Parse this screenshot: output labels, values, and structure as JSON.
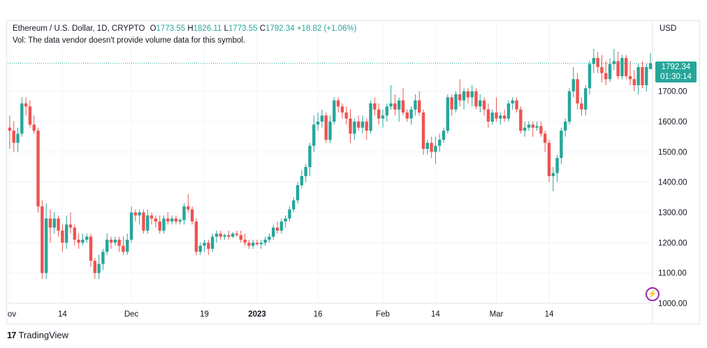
{
  "header": {
    "symbol": "Ethereum / U.S. Dollar, 1D, CRYPTO",
    "o_label": "O",
    "o_value": "1773.55",
    "h_label": "H",
    "h_value": "1826.11",
    "l_label": "L",
    "l_value": "1773.55",
    "c_label": "C",
    "c_value": "1792.34",
    "change": "+18.82 (+1.06%)",
    "volume_message": "Vol: The data vendor doesn't provide volume data for this symbol."
  },
  "price_tag": {
    "price": "1792.34",
    "countdown": "01:30:14"
  },
  "currency": "USD",
  "branding": {
    "logo_mark": "17",
    "logo_text": "TradingView"
  },
  "colors": {
    "up": "#26a69a",
    "down": "#ef5350",
    "grid": "#f0f3fa",
    "last_price_line": "#26a69a"
  },
  "chart_data": {
    "type": "candlestick",
    "title": "Ethereum / U.S. Dollar, 1D, CRYPTO",
    "ylabel": "USD",
    "ylim": [
      1000,
      1900
    ],
    "y_ticks": [
      1000,
      1100,
      1200,
      1300,
      1400,
      1500,
      1600,
      1700
    ],
    "y_tick_labels": [
      "1000.00",
      "1100.00",
      "1200.00",
      "1300.00",
      "1400.00",
      "1500.00",
      "1600.00",
      "1700.00"
    ],
    "x_ticks": [
      {
        "day": 0,
        "label": "ov"
      },
      {
        "day": 13,
        "label": "14"
      },
      {
        "day": 30,
        "label": "Dec"
      },
      {
        "day": 48,
        "label": "19"
      },
      {
        "day": 61,
        "label": "2023"
      },
      {
        "day": 76,
        "label": "16"
      },
      {
        "day": 92,
        "label": "Feb"
      },
      {
        "day": 105,
        "label": "14"
      },
      {
        "day": 120,
        "label": "Mar"
      },
      {
        "day": 133,
        "label": "14"
      }
    ],
    "last_price": 1792.34,
    "candles": [
      [
        1580,
        1620,
        1510,
        1570
      ],
      [
        1570,
        1600,
        1500,
        1530
      ],
      [
        1530,
        1580,
        1500,
        1560
      ],
      [
        1560,
        1680,
        1550,
        1660
      ],
      [
        1660,
        1680,
        1620,
        1650
      ],
      [
        1650,
        1670,
        1580,
        1590
      ],
      [
        1590,
        1620,
        1560,
        1570
      ],
      [
        1570,
        1580,
        1300,
        1320
      ],
      [
        1320,
        1340,
        1080,
        1100
      ],
      [
        1100,
        1330,
        1080,
        1280
      ],
      [
        1280,
        1310,
        1200,
        1250
      ],
      [
        1250,
        1300,
        1230,
        1280
      ],
      [
        1280,
        1290,
        1220,
        1240
      ],
      [
        1240,
        1260,
        1170,
        1200
      ],
      [
        1200,
        1290,
        1180,
        1260
      ],
      [
        1260,
        1300,
        1230,
        1250
      ],
      [
        1250,
        1260,
        1190,
        1210
      ],
      [
        1210,
        1230,
        1180,
        1200
      ],
      [
        1200,
        1230,
        1190,
        1210
      ],
      [
        1210,
        1230,
        1200,
        1220
      ],
      [
        1220,
        1230,
        1120,
        1140
      ],
      [
        1140,
        1150,
        1080,
        1100
      ],
      [
        1100,
        1160,
        1080,
        1130
      ],
      [
        1130,
        1180,
        1110,
        1170
      ],
      [
        1170,
        1230,
        1160,
        1210
      ],
      [
        1210,
        1220,
        1180,
        1200
      ],
      [
        1200,
        1220,
        1190,
        1210
      ],
      [
        1210,
        1220,
        1170,
        1190
      ],
      [
        1190,
        1220,
        1160,
        1170
      ],
      [
        1170,
        1230,
        1160,
        1210
      ],
      [
        1210,
        1320,
        1200,
        1300
      ],
      [
        1300,
        1310,
        1270,
        1290
      ],
      [
        1290,
        1310,
        1260,
        1300
      ],
      [
        1300,
        1310,
        1230,
        1240
      ],
      [
        1240,
        1310,
        1230,
        1290
      ],
      [
        1290,
        1300,
        1260,
        1280
      ],
      [
        1280,
        1290,
        1250,
        1270
      ],
      [
        1270,
        1290,
        1230,
        1240
      ],
      [
        1240,
        1290,
        1230,
        1280
      ],
      [
        1280,
        1300,
        1260,
        1270
      ],
      [
        1270,
        1290,
        1260,
        1280
      ],
      [
        1280,
        1290,
        1260,
        1270
      ],
      [
        1270,
        1280,
        1260,
        1275
      ],
      [
        1275,
        1330,
        1260,
        1320
      ],
      [
        1320,
        1360,
        1300,
        1310
      ],
      [
        1310,
        1320,
        1260,
        1270
      ],
      [
        1270,
        1280,
        1160,
        1170
      ],
      [
        1170,
        1200,
        1160,
        1190
      ],
      [
        1190,
        1210,
        1170,
        1200
      ],
      [
        1200,
        1210,
        1160,
        1180
      ],
      [
        1180,
        1230,
        1170,
        1220
      ],
      [
        1220,
        1240,
        1200,
        1230
      ],
      [
        1230,
        1240,
        1210,
        1220
      ],
      [
        1220,
        1230,
        1210,
        1225
      ],
      [
        1225,
        1240,
        1210,
        1220
      ],
      [
        1220,
        1235,
        1215,
        1230
      ],
      [
        1230,
        1240,
        1220,
        1225
      ],
      [
        1225,
        1240,
        1200,
        1210
      ],
      [
        1210,
        1230,
        1190,
        1200
      ],
      [
        1200,
        1210,
        1180,
        1190
      ],
      [
        1190,
        1210,
        1180,
        1200
      ],
      [
        1200,
        1210,
        1190,
        1195
      ],
      [
        1195,
        1210,
        1180,
        1200
      ],
      [
        1200,
        1220,
        1190,
        1210
      ],
      [
        1210,
        1230,
        1200,
        1220
      ],
      [
        1220,
        1260,
        1210,
        1250
      ],
      [
        1250,
        1270,
        1230,
        1240
      ],
      [
        1240,
        1280,
        1230,
        1270
      ],
      [
        1270,
        1290,
        1250,
        1280
      ],
      [
        1280,
        1320,
        1270,
        1310
      ],
      [
        1310,
        1350,
        1300,
        1340
      ],
      [
        1340,
        1400,
        1330,
        1390
      ],
      [
        1390,
        1440,
        1380,
        1420
      ],
      [
        1420,
        1460,
        1400,
        1450
      ],
      [
        1450,
        1530,
        1420,
        1520
      ],
      [
        1520,
        1620,
        1500,
        1590
      ],
      [
        1590,
        1630,
        1570,
        1600
      ],
      [
        1600,
        1640,
        1580,
        1620
      ],
      [
        1620,
        1630,
        1530,
        1540
      ],
      [
        1540,
        1620,
        1530,
        1600
      ],
      [
        1600,
        1680,
        1590,
        1670
      ],
      [
        1670,
        1680,
        1630,
        1650
      ],
      [
        1650,
        1660,
        1610,
        1630
      ],
      [
        1630,
        1650,
        1590,
        1610
      ],
      [
        1610,
        1640,
        1530,
        1560
      ],
      [
        1560,
        1610,
        1540,
        1600
      ],
      [
        1600,
        1620,
        1570,
        1580
      ],
      [
        1580,
        1620,
        1560,
        1600
      ],
      [
        1600,
        1610,
        1540,
        1570
      ],
      [
        1570,
        1670,
        1560,
        1660
      ],
      [
        1660,
        1680,
        1620,
        1640
      ],
      [
        1640,
        1660,
        1590,
        1610
      ],
      [
        1610,
        1640,
        1580,
        1620
      ],
      [
        1620,
        1660,
        1600,
        1650
      ],
      [
        1650,
        1720,
        1640,
        1660
      ],
      [
        1660,
        1690,
        1620,
        1640
      ],
      [
        1640,
        1680,
        1600,
        1670
      ],
      [
        1670,
        1710,
        1620,
        1630
      ],
      [
        1630,
        1640,
        1600,
        1610
      ],
      [
        1610,
        1650,
        1590,
        1640
      ],
      [
        1640,
        1690,
        1620,
        1670
      ],
      [
        1670,
        1700,
        1620,
        1630
      ],
      [
        1630,
        1640,
        1490,
        1510
      ],
      [
        1510,
        1540,
        1490,
        1530
      ],
      [
        1530,
        1550,
        1480,
        1500
      ],
      [
        1500,
        1550,
        1460,
        1520
      ],
      [
        1520,
        1560,
        1500,
        1540
      ],
      [
        1540,
        1580,
        1530,
        1570
      ],
      [
        1570,
        1690,
        1560,
        1680
      ],
      [
        1680,
        1690,
        1620,
        1640
      ],
      [
        1640,
        1700,
        1630,
        1690
      ],
      [
        1690,
        1740,
        1650,
        1670
      ],
      [
        1670,
        1710,
        1640,
        1700
      ],
      [
        1700,
        1710,
        1660,
        1680
      ],
      [
        1680,
        1720,
        1650,
        1700
      ],
      [
        1700,
        1710,
        1640,
        1650
      ],
      [
        1650,
        1690,
        1630,
        1670
      ],
      [
        1670,
        1680,
        1620,
        1640
      ],
      [
        1640,
        1660,
        1580,
        1600
      ],
      [
        1600,
        1640,
        1590,
        1630
      ],
      [
        1630,
        1680,
        1600,
        1610
      ],
      [
        1610,
        1630,
        1590,
        1620
      ],
      [
        1620,
        1640,
        1600,
        1610
      ],
      [
        1610,
        1670,
        1600,
        1660
      ],
      [
        1660,
        1680,
        1640,
        1670
      ],
      [
        1670,
        1680,
        1630,
        1640
      ],
      [
        1640,
        1650,
        1560,
        1570
      ],
      [
        1570,
        1600,
        1550,
        1580
      ],
      [
        1580,
        1600,
        1570,
        1590
      ],
      [
        1590,
        1600,
        1550,
        1580
      ],
      [
        1580,
        1600,
        1570,
        1585
      ],
      [
        1585,
        1600,
        1550,
        1560
      ],
      [
        1560,
        1570,
        1500,
        1530
      ],
      [
        1530,
        1540,
        1400,
        1420
      ],
      [
        1420,
        1450,
        1370,
        1430
      ],
      [
        1430,
        1490,
        1400,
        1480
      ],
      [
        1480,
        1580,
        1460,
        1570
      ],
      [
        1570,
        1610,
        1550,
        1600
      ],
      [
        1600,
        1710,
        1590,
        1700
      ],
      [
        1700,
        1780,
        1680,
        1740
      ],
      [
        1740,
        1760,
        1640,
        1660
      ],
      [
        1660,
        1680,
        1620,
        1640
      ],
      [
        1640,
        1720,
        1620,
        1710
      ],
      [
        1710,
        1800,
        1690,
        1790
      ],
      [
        1790,
        1840,
        1760,
        1810
      ],
      [
        1810,
        1830,
        1760,
        1780
      ],
      [
        1780,
        1820,
        1730,
        1760
      ],
      [
        1760,
        1800,
        1720,
        1740
      ],
      [
        1740,
        1810,
        1730,
        1790
      ],
      [
        1790,
        1840,
        1770,
        1800
      ],
      [
        1800,
        1830,
        1740,
        1750
      ],
      [
        1750,
        1820,
        1740,
        1810
      ],
      [
        1810,
        1820,
        1740,
        1750
      ],
      [
        1750,
        1800,
        1720,
        1740
      ],
      [
        1740,
        1770,
        1700,
        1720
      ],
      [
        1720,
        1790,
        1690,
        1780
      ],
      [
        1780,
        1800,
        1710,
        1720
      ],
      [
        1720,
        1790,
        1700,
        1780
      ],
      [
        1773.55,
        1826.11,
        1773.55,
        1792.34
      ]
    ]
  }
}
